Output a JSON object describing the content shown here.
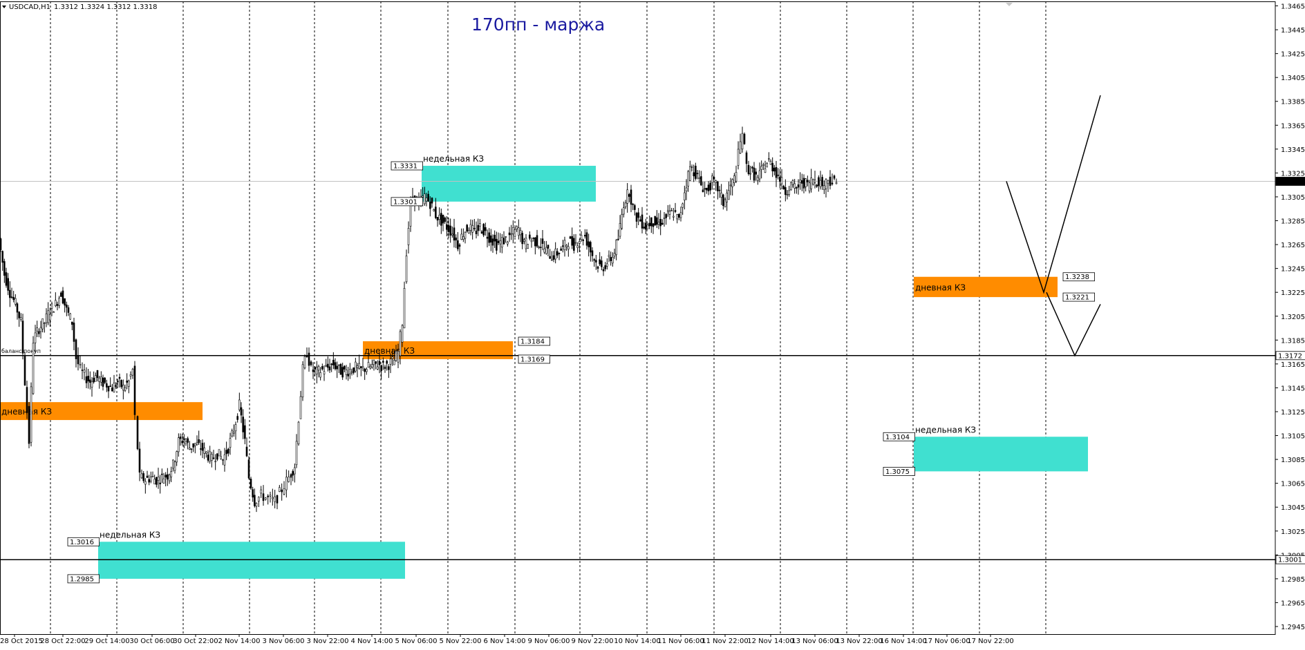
{
  "header": {
    "symbol_text": "USDCAD,H1",
    "ohlc_text": "1.3312 1.3324 1.3312 1.3318",
    "title": "170пп - маржа"
  },
  "colors": {
    "weekly_zone": "#40E0D0",
    "daily_zone": "#FF8C00",
    "title": "#1a1aa0",
    "grid": "#000000",
    "candles": "#000000"
  },
  "chart_data": {
    "type": "candlestick",
    "symbol": "USDCAD",
    "timeframe": "H1",
    "ylim": [
      1.2935,
      1.347
    ],
    "y_ticks": [
      "1.3465",
      "1.3445",
      "1.3425",
      "1.3405",
      "1.3385",
      "1.3365",
      "1.3345",
      "1.3325",
      "1.3305",
      "1.3285",
      "1.3265",
      "1.3245",
      "1.3225",
      "1.3205",
      "1.3185",
      "1.3165",
      "1.3145",
      "1.3125",
      "1.3105",
      "1.3085",
      "1.3065",
      "1.3045",
      "1.3025",
      "1.3005",
      "1.2985",
      "1.2965",
      "1.2945"
    ],
    "x_labels": [
      "28 Oct 2015",
      "28 Oct 22:00",
      "29 Oct 14:00",
      "30 Oct 06:00",
      "30 Oct 22:00",
      "2 Nov 14:00",
      "3 Nov 06:00",
      "3 Nov 22:00",
      "4 Nov 14:00",
      "5 Nov 06:00",
      "5 Nov 22:00",
      "6 Nov 14:00",
      "9 Nov 06:00",
      "9 Nov 22:00",
      "10 Nov 14:00",
      "11 Nov 06:00",
      "11 Nov 22:00",
      "12 Nov 14:00",
      "13 Nov 06:00",
      "13 Nov 22:00",
      "16 Nov 14:00",
      "17 Nov 06:00",
      "17 Nov 22:00"
    ],
    "price_series": [
      [
        0,
        1.327
      ],
      [
        8,
        1.324
      ],
      [
        16,
        1.3225
      ],
      [
        24,
        1.3215
      ],
      [
        32,
        1.32
      ],
      [
        38,
        1.315
      ],
      [
        44,
        1.31
      ],
      [
        50,
        1.3185
      ],
      [
        58,
        1.3195
      ],
      [
        66,
        1.32
      ],
      [
        74,
        1.321
      ],
      [
        82,
        1.3215
      ],
      [
        90,
        1.3225
      ],
      [
        98,
        1.321
      ],
      [
        106,
        1.32
      ],
      [
        112,
        1.317
      ],
      [
        118,
        1.316
      ],
      [
        124,
        1.3155
      ],
      [
        132,
        1.315
      ],
      [
        140,
        1.3155
      ],
      [
        148,
        1.315
      ],
      [
        156,
        1.3148
      ],
      [
        164,
        1.3145
      ],
      [
        172,
        1.315
      ],
      [
        180,
        1.3145
      ],
      [
        188,
        1.315
      ],
      [
        194,
        1.316
      ],
      [
        198,
        1.312
      ],
      [
        204,
        1.307
      ],
      [
        212,
        1.3068
      ],
      [
        220,
        1.307
      ],
      [
        228,
        1.3068
      ],
      [
        236,
        1.307
      ],
      [
        244,
        1.3072
      ],
      [
        252,
        1.308
      ],
      [
        260,
        1.31
      ],
      [
        268,
        1.3102
      ],
      [
        276,
        1.3095
      ],
      [
        284,
        1.3098
      ],
      [
        292,
        1.3095
      ],
      [
        300,
        1.309
      ],
      [
        308,
        1.3085
      ],
      [
        316,
        1.309
      ],
      [
        324,
        1.3085
      ],
      [
        332,
        1.3095
      ],
      [
        340,
        1.311
      ],
      [
        348,
        1.313
      ],
      [
        356,
        1.31
      ],
      [
        362,
        1.307
      ],
      [
        370,
        1.305
      ],
      [
        380,
        1.3055
      ],
      [
        390,
        1.3052
      ],
      [
        400,
        1.305
      ],
      [
        410,
        1.306
      ],
      [
        420,
        1.307
      ],
      [
        428,
        1.308
      ],
      [
        434,
        1.312
      ],
      [
        440,
        1.316
      ],
      [
        446,
        1.3175
      ],
      [
        452,
        1.316
      ],
      [
        460,
        1.3158
      ],
      [
        468,
        1.316
      ],
      [
        476,
        1.3162
      ],
      [
        484,
        1.3165
      ],
      [
        492,
        1.316
      ],
      [
        500,
        1.3158
      ],
      [
        508,
        1.316
      ],
      [
        516,
        1.3162
      ],
      [
        524,
        1.316
      ],
      [
        532,
        1.3162
      ],
      [
        540,
        1.3163
      ],
      [
        548,
        1.3165
      ],
      [
        556,
        1.3163
      ],
      [
        564,
        1.3165
      ],
      [
        572,
        1.3168
      ],
      [
        578,
        1.3175
      ],
      [
        584,
        1.32
      ],
      [
        590,
        1.326
      ],
      [
        596,
        1.33
      ],
      [
        602,
        1.3305
      ],
      [
        608,
        1.33
      ],
      [
        616,
        1.3305
      ],
      [
        624,
        1.33
      ],
      [
        632,
        1.329
      ],
      [
        640,
        1.3285
      ],
      [
        648,
        1.328
      ],
      [
        656,
        1.3275
      ],
      [
        664,
        1.3265
      ],
      [
        672,
        1.3275
      ],
      [
        680,
        1.328
      ],
      [
        688,
        1.3275
      ],
      [
        696,
        1.328
      ],
      [
        704,
        1.3275
      ],
      [
        712,
        1.327
      ],
      [
        720,
        1.3265
      ],
      [
        728,
        1.3268
      ],
      [
        736,
        1.327
      ],
      [
        744,
        1.3275
      ],
      [
        752,
        1.3278
      ],
      [
        760,
        1.3265
      ],
      [
        768,
        1.327
      ],
      [
        776,
        1.3268
      ],
      [
        784,
        1.3265
      ],
      [
        792,
        1.326
      ],
      [
        800,
        1.3255
      ],
      [
        808,
        1.3258
      ],
      [
        816,
        1.3262
      ],
      [
        824,
        1.3268
      ],
      [
        832,
        1.3265
      ],
      [
        840,
        1.327
      ],
      [
        848,
        1.3272
      ],
      [
        856,
        1.326
      ],
      [
        864,
        1.325
      ],
      [
        872,
        1.3245
      ],
      [
        880,
        1.325
      ],
      [
        888,
        1.3255
      ],
      [
        896,
        1.327
      ],
      [
        904,
        1.33
      ],
      [
        912,
        1.331
      ],
      [
        920,
        1.329
      ],
      [
        928,
        1.3285
      ],
      [
        936,
        1.328
      ],
      [
        944,
        1.3285
      ],
      [
        952,
        1.3282
      ],
      [
        960,
        1.3285
      ],
      [
        968,
        1.329
      ],
      [
        976,
        1.3292
      ],
      [
        984,
        1.3285
      ],
      [
        992,
        1.331
      ],
      [
        1000,
        1.333
      ],
      [
        1008,
        1.3325
      ],
      [
        1016,
        1.3315
      ],
      [
        1024,
        1.331
      ],
      [
        1032,
        1.3318
      ],
      [
        1040,
        1.3312
      ],
      [
        1048,
        1.33
      ],
      [
        1056,
        1.331
      ],
      [
        1064,
        1.332
      ],
      [
        1070,
        1.334
      ],
      [
        1076,
        1.336
      ],
      [
        1082,
        1.333
      ],
      [
        1090,
        1.3325
      ],
      [
        1098,
        1.332
      ],
      [
        1106,
        1.333
      ],
      [
        1114,
        1.3335
      ],
      [
        1122,
        1.3328
      ],
      [
        1130,
        1.332
      ],
      [
        1138,
        1.331
      ],
      [
        1146,
        1.3315
      ],
      [
        1154,
        1.3312
      ],
      [
        1162,
        1.3318
      ],
      [
        1170,
        1.3315
      ],
      [
        1178,
        1.332
      ],
      [
        1186,
        1.3318
      ],
      [
        1194,
        1.3315
      ],
      [
        1200,
        1.332
      ],
      [
        1206,
        1.3318
      ],
      [
        1212,
        1.3316
      ]
    ],
    "horizontal_lines": [
      {
        "price": 1.3172,
        "label": "1.3172",
        "note": "баланс покуп"
      },
      {
        "price": 1.3001,
        "label": "1.3001"
      }
    ],
    "current_price": {
      "price": 1.3318,
      "label": "1.3318"
    },
    "zones": [
      {
        "kind": "weekly",
        "text": "недельная КЗ",
        "high": 1.3331,
        "low": 1.3301,
        "high_label": "1.3331",
        "low_label": "1.3301",
        "labels_side": "left"
      },
      {
        "kind": "daily",
        "text": "дневная КЗ",
        "high": 1.3184,
        "low": 1.3169,
        "high_label": "1.3184",
        "low_label": "1.3169",
        "labels_side": "right"
      },
      {
        "kind": "daily",
        "text": "дневная КЗ",
        "high": 1.3133,
        "low": 1.3118,
        "high_label": "",
        "low_label": "",
        "labels_side": "none"
      },
      {
        "kind": "weekly",
        "text": "недельная КЗ",
        "high": 1.3016,
        "low": 1.2985,
        "high_label": "1.3016",
        "low_label": "1.2985",
        "labels_side": "left"
      },
      {
        "kind": "daily",
        "text": "дневная КЗ",
        "high": 1.3238,
        "low": 1.3221,
        "high_label": "1.3238",
        "low_label": "1.3221",
        "labels_side": "right"
      },
      {
        "kind": "weekly",
        "text": "недельная КЗ",
        "high": 1.3104,
        "low": 1.3075,
        "high_label": "1.3104",
        "low_label": "1.3075",
        "labels_side": "left"
      }
    ],
    "projections": [
      {
        "points": [
          [
            0,
            1.3318
          ],
          [
            1,
            1.3225
          ],
          [
            2,
            1.339
          ]
        ]
      },
      {
        "points": [
          [
            0,
            1.3225
          ],
          [
            1,
            1.3172
          ],
          [
            2,
            1.3215
          ]
        ]
      }
    ]
  }
}
